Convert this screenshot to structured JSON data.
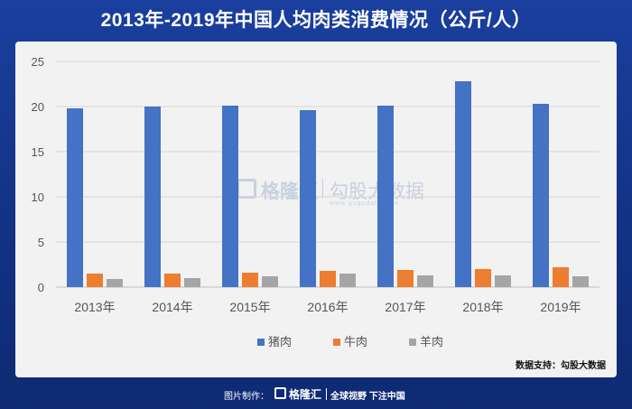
{
  "title": "2013年-2019年中国人均肉类消费情况（公斤/人）",
  "source": "数据支持：勾股大数据",
  "watermark": {
    "brand": "格隆汇",
    "partner": "勾股大数据",
    "url": "www.gogudata.com"
  },
  "footer": {
    "made_by": "图片制作：",
    "brand": "格隆汇",
    "slogan": "全球视野 下注中国"
  },
  "colors": {
    "pork": "#4472c4",
    "beef": "#ed7d31",
    "mutton": "#a5a5a5"
  },
  "chart_data": {
    "type": "bar",
    "categories": [
      "2013年",
      "2014年",
      "2015年",
      "2016年",
      "2017年",
      "2018年",
      "2019年"
    ],
    "series": [
      {
        "name": "猪肉",
        "values": [
          19.8,
          20.0,
          20.1,
          19.6,
          20.1,
          22.8,
          20.3
        ]
      },
      {
        "name": "牛肉",
        "values": [
          1.5,
          1.5,
          1.6,
          1.8,
          1.9,
          2.0,
          2.2
        ]
      },
      {
        "name": "羊肉",
        "values": [
          0.9,
          1.0,
          1.2,
          1.5,
          1.3,
          1.3,
          1.2
        ]
      }
    ],
    "ylim": [
      0,
      25
    ],
    "yticks": [
      0,
      5,
      10,
      15,
      20,
      25
    ],
    "grid": true,
    "legend": "bottom"
  }
}
